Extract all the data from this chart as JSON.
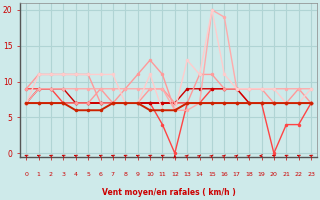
{
  "xlabel": "Vent moyen/en rafales ( km/h )",
  "background_color": "#ceeaea",
  "grid_color": "#b0d4d4",
  "x_ticks": [
    0,
    1,
    2,
    3,
    4,
    5,
    6,
    7,
    8,
    9,
    10,
    11,
    12,
    13,
    14,
    15,
    16,
    17,
    18,
    19,
    20,
    21,
    22,
    23
  ],
  "ylim": [
    -0.5,
    21
  ],
  "xlim": [
    -0.5,
    23.5
  ],
  "series": [
    {
      "color": "#ff4444",
      "alpha": 1.0,
      "linewidth": 1.0,
      "marker": "o",
      "markersize": 2.5,
      "data": [
        9,
        9,
        9,
        7,
        7,
        7,
        7,
        7,
        7,
        7,
        7,
        4,
        0,
        7,
        7,
        9,
        9,
        9,
        7,
        7,
        0,
        4,
        4,
        7
      ]
    },
    {
      "color": "#cc0000",
      "alpha": 1.0,
      "linewidth": 1.4,
      "marker": "o",
      "markersize": 2.5,
      "data": [
        7,
        7,
        7,
        7,
        7,
        7,
        7,
        7,
        7,
        7,
        7,
        7,
        7,
        7,
        7,
        7,
        7,
        7,
        7,
        7,
        7,
        7,
        7,
        7
      ]
    },
    {
      "color": "#cc0000",
      "alpha": 1.0,
      "linewidth": 1.0,
      "marker": "o",
      "markersize": 2.5,
      "data": [
        7,
        9,
        9,
        9,
        7,
        7,
        7,
        7,
        7,
        7,
        7,
        7,
        7,
        9,
        9,
        9,
        9,
        9,
        7,
        7,
        7,
        7,
        7,
        7
      ]
    },
    {
      "color": "#ff9999",
      "alpha": 1.0,
      "linewidth": 1.0,
      "marker": "o",
      "markersize": 2.5,
      "data": [
        9,
        11,
        11,
        11,
        11,
        11,
        7,
        7,
        9,
        11,
        13,
        11,
        6,
        7,
        11,
        11,
        9,
        9,
        9,
        9,
        7,
        7,
        9,
        7
      ]
    },
    {
      "color": "#ff9999",
      "alpha": 1.0,
      "linewidth": 1.0,
      "marker": "o",
      "markersize": 2.5,
      "data": [
        7,
        7,
        7,
        7,
        7,
        7,
        9,
        7,
        7,
        7,
        9,
        9,
        7,
        7,
        7,
        7,
        7,
        7,
        7,
        7,
        7,
        7,
        7,
        7
      ]
    },
    {
      "color": "#ffaaaa",
      "alpha": 1.0,
      "linewidth": 1.0,
      "marker": "o",
      "markersize": 2.5,
      "data": [
        7,
        9,
        9,
        9,
        9,
        9,
        9,
        9,
        9,
        9,
        9,
        9,
        6,
        6,
        7,
        20,
        19,
        9,
        9,
        9,
        9,
        9,
        9,
        9
      ]
    },
    {
      "color": "#ffcccc",
      "alpha": 1.0,
      "linewidth": 1.0,
      "marker": "o",
      "markersize": 2.5,
      "data": [
        7,
        11,
        11,
        11,
        11,
        11,
        11,
        11,
        7,
        7,
        11,
        6,
        6,
        13,
        11,
        20,
        11,
        9,
        9,
        9,
        9,
        7,
        7,
        9
      ]
    },
    {
      "color": "#cc2200",
      "alpha": 1.0,
      "linewidth": 1.4,
      "marker": "o",
      "markersize": 2.5,
      "data": [
        7,
        7,
        7,
        7,
        6,
        6,
        6,
        7,
        7,
        7,
        6,
        6,
        6,
        7,
        7,
        7,
        7,
        7,
        7,
        7,
        7,
        7,
        7,
        7
      ]
    }
  ],
  "arrow_angles": [
    135,
    135,
    135,
    135,
    135,
    135,
    135,
    135,
    135,
    135,
    135,
    135,
    90,
    60,
    60,
    60,
    60,
    60,
    60,
    180,
    135,
    135,
    135,
    135
  ],
  "arrow_color": "#cc0000",
  "tick_color": "#cc0000",
  "label_color": "#cc0000",
  "spine_color": "#888888"
}
